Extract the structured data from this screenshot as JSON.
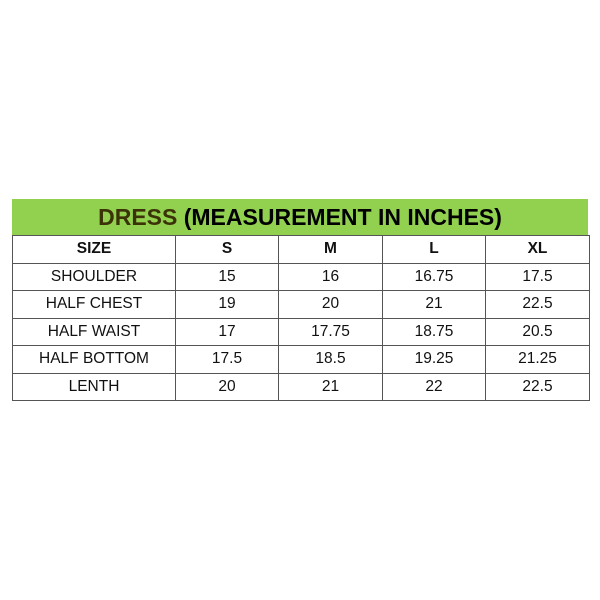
{
  "title": {
    "word": "DRESS",
    "rest": " (MEASUREMENT IN INCHES)",
    "accent": "#92d050"
  },
  "header": [
    "SIZE",
    "S",
    "M",
    "L",
    "XL"
  ],
  "rows": [
    [
      "SHOULDER",
      "15",
      "16",
      "16.75",
      "17.5"
    ],
    [
      "HALF CHEST",
      "19",
      "20",
      "21",
      "22.5"
    ],
    [
      "HALF WAIST",
      "17",
      "17.75",
      "18.75",
      "20.5"
    ],
    [
      "HALF BOTTOM",
      "17.5",
      "18.5",
      "19.25",
      "21.25"
    ],
    [
      "LENTH",
      "20",
      "21",
      "22",
      "22.5"
    ]
  ]
}
